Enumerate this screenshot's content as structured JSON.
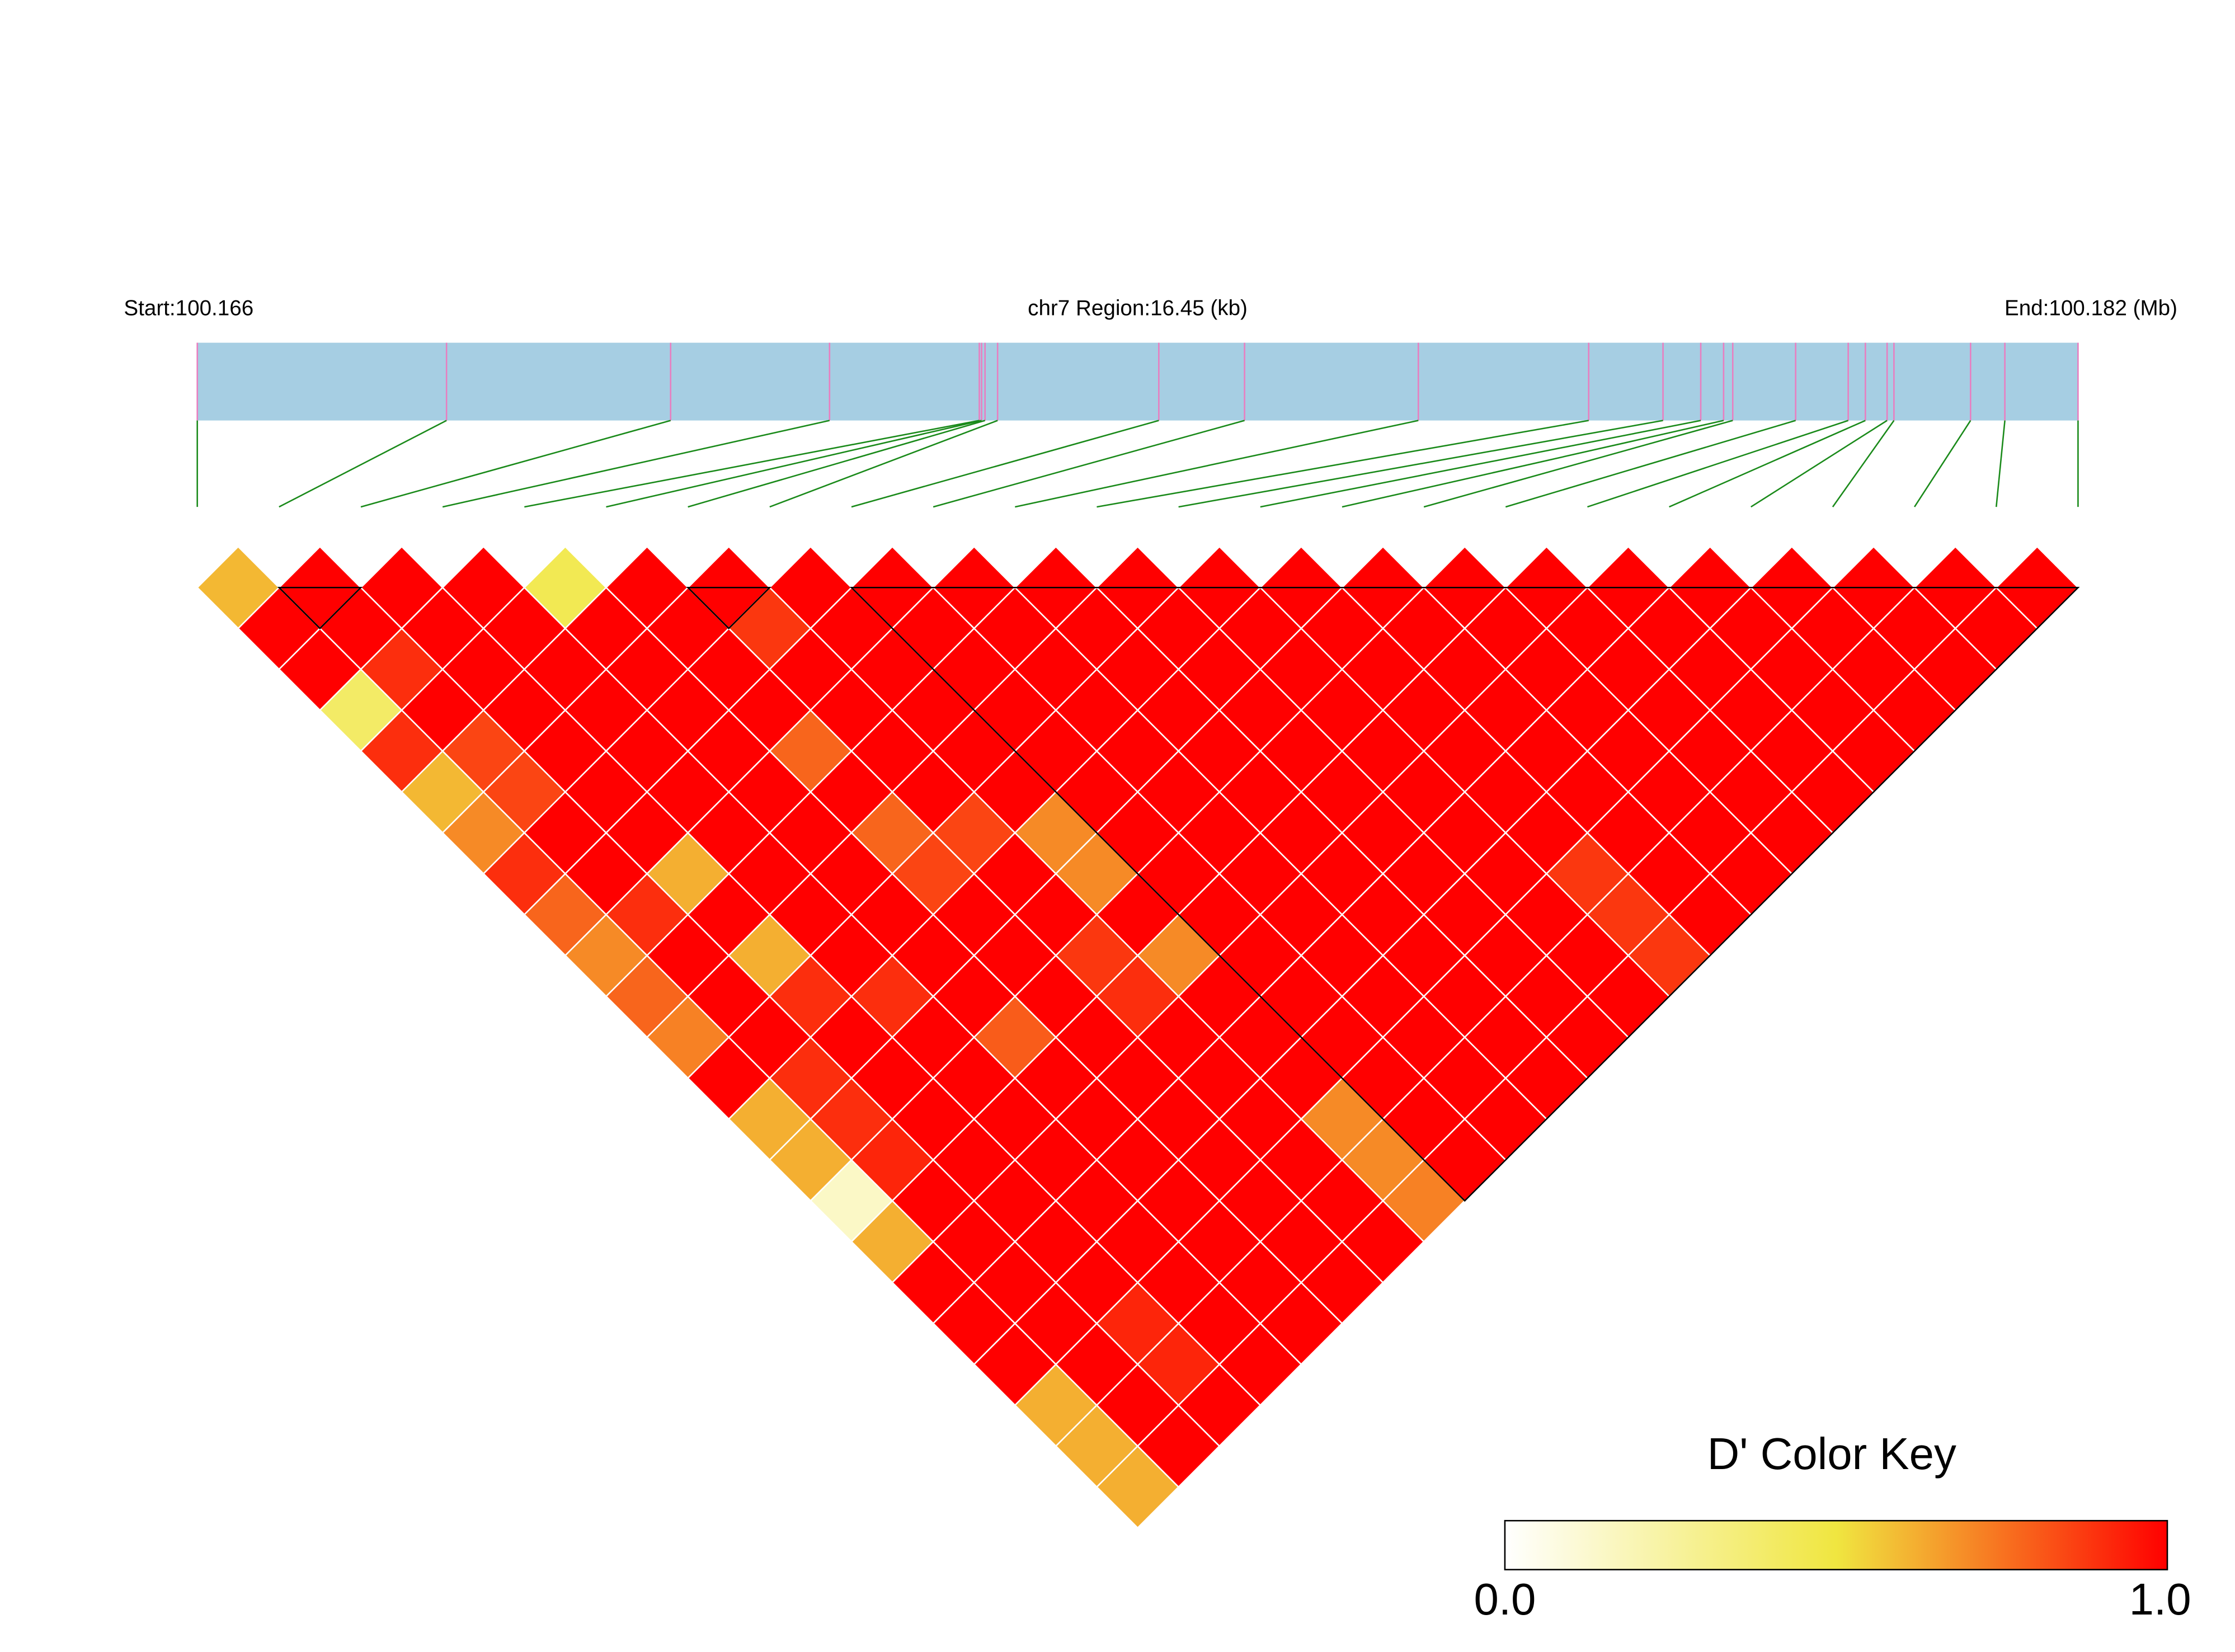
{
  "chart_data": {
    "type": "ld_heatmap",
    "start_label": "Start:100.166",
    "region_label": "chr7 Region:16.45 (kb)",
    "end_label": "End:100.182 (Mb)",
    "key_title": "D' Color Key",
    "xlim": [
      0,
      16.45
    ],
    "positions": [
      0,
      2.18,
      4.14,
      5.53,
      6.84,
      6.86,
      6.89,
      7.0,
      8.41,
      9.16,
      10.68,
      12.17,
      12.82,
      13.15,
      13.35,
      13.43,
      13.98,
      14.44,
      14.59,
      14.78,
      14.84,
      15.51,
      15.81,
      16.45
    ],
    "bar_color": "#a6cee3",
    "marker_color": "#e87ec0",
    "connector_color": "#1a8a1a",
    "block_color": "#000000",
    "dprime": [
      [
        0.6,
        1,
        1,
        0.4,
        0.9,
        0.6,
        0.7,
        0.9,
        0.78,
        0.7,
        0.78,
        0.72,
        1,
        0.62,
        0.62,
        0.15,
        0.62,
        1,
        1,
        1,
        0.62,
        0.62,
        0.62
      ],
      [
        1,
        1,
        0.9,
        1,
        0.85,
        0.85,
        1,
        1,
        0.9,
        1,
        1,
        1,
        0.9,
        0.9,
        0.92,
        1,
        1,
        1,
        1,
        1,
        1,
        1
      ],
      [
        1,
        1,
        1,
        1,
        1,
        1,
        1,
        0.62,
        1,
        0.62,
        0.9,
        1,
        1,
        1,
        1,
        1,
        1,
        1,
        0.92,
        0.92,
        1
      ],
      [
        1,
        1,
        1,
        1,
        1,
        1,
        1,
        1,
        1,
        1,
        0.9,
        1,
        1,
        1,
        1,
        1,
        1,
        1,
        1,
        1
      ],
      [
        0.45,
        1,
        1,
        1,
        1,
        1,
        1,
        1,
        1,
        1,
        1,
        0.8,
        1,
        1,
        1,
        1,
        1,
        1,
        1
      ],
      [
        1,
        1,
        1,
        1,
        0.78,
        1,
        0.78,
        0.85,
        1,
        1,
        1,
        1,
        1,
        1,
        1,
        1,
        1,
        1
      ],
      [
        1,
        0.88,
        1,
        1,
        1,
        1,
        0.85,
        1,
        1,
        0.88,
        0.9,
        1,
        1,
        1,
        1,
        1,
        1
      ],
      [
        1,
        1,
        1,
        1,
        1,
        1,
        0.7,
        0.7,
        1,
        0.7,
        1,
        1,
        1,
        0.7,
        0.7,
        0.72
      ],
      [
        1,
        1,
        1,
        1,
        1,
        1,
        1,
        1,
        1,
        1,
        1,
        1,
        1,
        1,
        1
      ],
      [
        1,
        1,
        1,
        1,
        1,
        1,
        1,
        1,
        1,
        1,
        1,
        1,
        1,
        1
      ],
      [
        1,
        1,
        1,
        1,
        1,
        1,
        1,
        1,
        1,
        1,
        1,
        1,
        1
      ],
      [
        1,
        1,
        1,
        1,
        1,
        1,
        1,
        1,
        1,
        1,
        1,
        1
      ],
      [
        1,
        1,
        1,
        1,
        1,
        1,
        1,
        1,
        1,
        1,
        1
      ],
      [
        1,
        1,
        1,
        1,
        1,
        1,
        1,
        0.88,
        0.88,
        0.88
      ],
      [
        1,
        1,
        1,
        1,
        1,
        1,
        1,
        1,
        1
      ],
      [
        1,
        1,
        1,
        1,
        1,
        1,
        1,
        1
      ],
      [
        1,
        1,
        1,
        1,
        1,
        1,
        1
      ],
      [
        1,
        1,
        1,
        1,
        1,
        1
      ],
      [
        1,
        1,
        1,
        1,
        1
      ],
      [
        1,
        1,
        1,
        1
      ],
      [
        1,
        1,
        1
      ],
      [
        1,
        1
      ],
      [
        1
      ]
    ],
    "blocks": [
      [
        1,
        2
      ],
      [
        6,
        7
      ],
      [
        8,
        23
      ]
    ],
    "key_lim": [
      0,
      1
    ],
    "key_ticks": [
      {
        "value": 0,
        "label": "0.0"
      },
      {
        "value": 1,
        "label": "1.0"
      }
    ],
    "key_colors": [
      {
        "value": 0,
        "color": "#ffffff"
      },
      {
        "value": 0.5,
        "color": "#f0e640"
      },
      {
        "value": 1,
        "color": "#ff0000"
      }
    ]
  }
}
